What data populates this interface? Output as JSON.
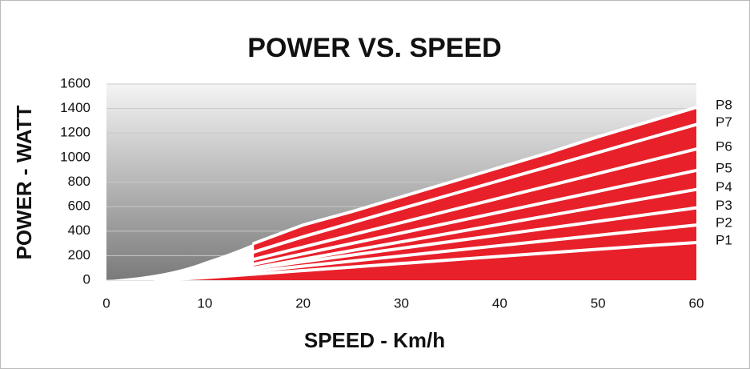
{
  "chart_data": {
    "type": "area",
    "title": "POWER VS. SPEED",
    "x_label": "SPEED - Km/h",
    "y_label": "POWER - WATT",
    "x": [
      0,
      5,
      10,
      15,
      20,
      25,
      30,
      35,
      40,
      45,
      50,
      55,
      60
    ],
    "xlim": [
      0,
      60
    ],
    "xticks": [
      0,
      10,
      20,
      30,
      40,
      50,
      60
    ],
    "ylim": [
      0,
      1600
    ],
    "yticks": [
      0,
      200,
      400,
      600,
      800,
      1000,
      1200,
      1400,
      1600
    ],
    "grid": true,
    "series": [
      {
        "name": "P1",
        "color": "#e8202a",
        "values": [
          null,
          0,
          20,
          49,
          78,
          107,
          136,
          165,
          194,
          223,
          252,
          281,
          307
        ]
      },
      {
        "name": "P2",
        "color": "#e8202a",
        "values": [
          null,
          null,
          30,
          72,
          114,
          156,
          198,
          240,
          282,
          324,
          366,
          408,
          450
        ]
      },
      {
        "name": "P3",
        "color": "#e8202a",
        "values": [
          null,
          null,
          40,
          95,
          150,
          205,
          260,
          315,
          370,
          425,
          480,
          535,
          590
        ]
      },
      {
        "name": "P4",
        "color": "#e8202a",
        "values": [
          null,
          null,
          null,
          100,
          171,
          242,
          313,
          384,
          456,
          527,
          598,
          669,
          740
        ]
      },
      {
        "name": "P5",
        "color": "#e8202a",
        "values": [
          null,
          null,
          null,
          130,
          215,
          300,
          385,
          470,
          555,
          640,
          725,
          810,
          895
        ]
      },
      {
        "name": "P6",
        "color": "#e8202a",
        "values": [
          null,
          null,
          null,
          170,
          270,
          370,
          470,
          570,
          670,
          770,
          870,
          970,
          1070
        ]
      },
      {
        "name": "P7",
        "color": "#e8202a",
        "values": [
          null,
          null,
          null,
          230,
          354,
          469,
          584,
          698,
          813,
          927,
          1041,
          1156,
          1270
        ]
      },
      {
        "name": "P8",
        "color": "#e8202a",
        "values": [
          null,
          null,
          null,
          300,
          450,
          560,
          680,
          800,
          920,
          1040,
          1170,
          1290,
          1410
        ]
      }
    ]
  }
}
